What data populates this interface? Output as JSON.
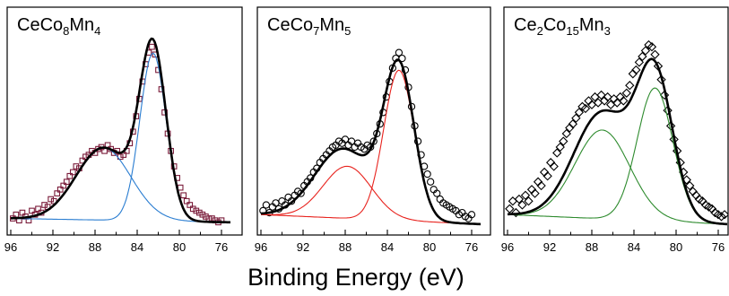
{
  "xlabel": "Binding Energy (eV)",
  "chart_data": [
    {
      "type": "scatter",
      "label_parts": [
        {
          "text": "CeCo",
          "sub": false
        },
        {
          "text": "8",
          "sub": true
        },
        {
          "text": "Mn",
          "sub": false
        },
        {
          "text": "4",
          "sub": true
        }
      ],
      "xlim": [
        96,
        75
      ],
      "xticks": [
        96,
        92,
        88,
        84,
        80,
        76
      ],
      "ylim": [
        0,
        1
      ],
      "colors": {
        "markers": "#7a1c3a",
        "component": "#2a7dd1",
        "fit": "#000000"
      },
      "marker": "square",
      "components": [
        {
          "center": 87.2,
          "amp": 0.375,
          "width": 2.6
        },
        {
          "center": 82.5,
          "amp": 0.87,
          "width": 1.25
        }
      ],
      "fit_peaks": [
        {
          "center": 87.2,
          "amp": 0.375,
          "width": 2.6
        },
        {
          "center": 82.5,
          "amp": 0.87,
          "width": 1.25
        }
      ],
      "baseline_left": 0.03,
      "baseline_right": 0.01,
      "points": [
        [
          95.8,
          0.03
        ],
        [
          95.5,
          0.05
        ],
        [
          95.2,
          0.02
        ],
        [
          94.9,
          0.06
        ],
        [
          94.6,
          0.04
        ],
        [
          94.3,
          0.02
        ],
        [
          94.0,
          0.07
        ],
        [
          93.7,
          0.05
        ],
        [
          93.4,
          0.08
        ],
        [
          93.1,
          0.06
        ],
        [
          92.8,
          0.1
        ],
        [
          92.5,
          0.09
        ],
        [
          92.2,
          0.13
        ],
        [
          91.9,
          0.12
        ],
        [
          91.6,
          0.16
        ],
        [
          91.3,
          0.18
        ],
        [
          91.0,
          0.2
        ],
        [
          90.7,
          0.22
        ],
        [
          90.4,
          0.25
        ],
        [
          90.1,
          0.27
        ],
        [
          89.8,
          0.3
        ],
        [
          89.5,
          0.29
        ],
        [
          89.2,
          0.33
        ],
        [
          88.9,
          0.35
        ],
        [
          88.6,
          0.36
        ],
        [
          88.3,
          0.38
        ],
        [
          88.0,
          0.37
        ],
        [
          87.7,
          0.39
        ],
        [
          87.4,
          0.4
        ],
        [
          87.1,
          0.38
        ],
        [
          86.8,
          0.41
        ],
        [
          86.5,
          0.39
        ],
        [
          86.2,
          0.37
        ],
        [
          85.9,
          0.38
        ],
        [
          85.6,
          0.35
        ],
        [
          85.3,
          0.36
        ],
        [
          85.0,
          0.38
        ],
        [
          84.7,
          0.42
        ],
        [
          84.4,
          0.48
        ],
        [
          84.1,
          0.56
        ],
        [
          83.8,
          0.65
        ],
        [
          83.5,
          0.74
        ],
        [
          83.2,
          0.83
        ],
        [
          82.9,
          0.89
        ],
        [
          82.6,
          0.92
        ],
        [
          82.3,
          0.88
        ],
        [
          82.0,
          0.8
        ],
        [
          81.7,
          0.7
        ],
        [
          81.4,
          0.58
        ],
        [
          81.1,
          0.47
        ],
        [
          80.8,
          0.38
        ],
        [
          80.5,
          0.3
        ],
        [
          80.2,
          0.24
        ],
        [
          79.9,
          0.19
        ],
        [
          79.6,
          0.15
        ],
        [
          79.3,
          0.12
        ],
        [
          79.0,
          0.1
        ],
        [
          78.7,
          0.08
        ],
        [
          78.4,
          0.07
        ],
        [
          78.1,
          0.06
        ],
        [
          77.8,
          0.05
        ],
        [
          77.5,
          0.04
        ],
        [
          77.2,
          0.03
        ],
        [
          76.9,
          0.03
        ],
        [
          76.6,
          0.02
        ],
        [
          76.3,
          0.01
        ],
        [
          76.0,
          0.02
        ]
      ]
    },
    {
      "type": "scatter",
      "label_parts": [
        {
          "text": "CeCo",
          "sub": false
        },
        {
          "text": "7",
          "sub": true
        },
        {
          "text": "Mn",
          "sub": false
        },
        {
          "text": "5",
          "sub": true
        }
      ],
      "xlim": [
        96,
        75
      ],
      "xticks": [
        96,
        92,
        88,
        84,
        80,
        76
      ],
      "ylim": [
        0,
        1
      ],
      "colors": {
        "markers": "#000000",
        "component": "#e8231e",
        "fit": "#000000"
      },
      "marker": "circle",
      "components": [
        {
          "center": 87.8,
          "amp": 0.27,
          "width": 2.3
        },
        {
          "center": 82.9,
          "amp": 0.78,
          "width": 1.45
        }
      ],
      "fit_peaks": [
        {
          "center": 88.2,
          "amp": 0.36,
          "width": 2.7
        },
        {
          "center": 82.9,
          "amp": 0.78,
          "width": 1.45
        }
      ],
      "baseline_left": 0.05,
      "baseline_right": 0.0,
      "points": [
        [
          95.8,
          0.07
        ],
        [
          95.5,
          0.1
        ],
        [
          95.2,
          0.06
        ],
        [
          94.9,
          0.09
        ],
        [
          94.6,
          0.11
        ],
        [
          94.3,
          0.08
        ],
        [
          94.0,
          0.12
        ],
        [
          93.7,
          0.1
        ],
        [
          93.4,
          0.14
        ],
        [
          93.1,
          0.12
        ],
        [
          92.8,
          0.15
        ],
        [
          92.5,
          0.17
        ],
        [
          92.2,
          0.16
        ],
        [
          91.9,
          0.2
        ],
        [
          91.6,
          0.22
        ],
        [
          91.3,
          0.24
        ],
        [
          91.0,
          0.27
        ],
        [
          90.7,
          0.29
        ],
        [
          90.4,
          0.32
        ],
        [
          90.1,
          0.34
        ],
        [
          89.8,
          0.36
        ],
        [
          89.5,
          0.38
        ],
        [
          89.2,
          0.4
        ],
        [
          88.9,
          0.41
        ],
        [
          88.6,
          0.43
        ],
        [
          88.3,
          0.42
        ],
        [
          88.0,
          0.44
        ],
        [
          87.7,
          0.41
        ],
        [
          87.4,
          0.43
        ],
        [
          87.1,
          0.4
        ],
        [
          86.8,
          0.42
        ],
        [
          86.5,
          0.4
        ],
        [
          86.2,
          0.39
        ],
        [
          85.9,
          0.41
        ],
        [
          85.6,
          0.4
        ],
        [
          85.3,
          0.43
        ],
        [
          85.0,
          0.47
        ],
        [
          84.7,
          0.52
        ],
        [
          84.4,
          0.58
        ],
        [
          84.1,
          0.66
        ],
        [
          83.8,
          0.74
        ],
        [
          83.5,
          0.81
        ],
        [
          83.2,
          0.86
        ],
        [
          82.9,
          0.89
        ],
        [
          82.6,
          0.86
        ],
        [
          82.3,
          0.8
        ],
        [
          82.0,
          0.71
        ],
        [
          81.7,
          0.61
        ],
        [
          81.4,
          0.51
        ],
        [
          81.1,
          0.43
        ],
        [
          80.8,
          0.36
        ],
        [
          80.5,
          0.3
        ],
        [
          80.2,
          0.26
        ],
        [
          79.9,
          0.22
        ],
        [
          79.6,
          0.18
        ],
        [
          79.3,
          0.16
        ],
        [
          79.0,
          0.13
        ],
        [
          78.7,
          0.11
        ],
        [
          78.4,
          0.1
        ],
        [
          78.1,
          0.09
        ],
        [
          77.8,
          0.08
        ],
        [
          77.5,
          0.07
        ],
        [
          77.2,
          0.05
        ],
        [
          76.9,
          0.06
        ],
        [
          76.6,
          0.04
        ],
        [
          76.3,
          0.03
        ],
        [
          76.0,
          0.05
        ]
      ]
    },
    {
      "type": "scatter",
      "label_parts": [
        {
          "text": "Ce",
          "sub": false
        },
        {
          "text": "2",
          "sub": true
        },
        {
          "text": "Co",
          "sub": false
        },
        {
          "text": "15",
          "sub": true
        },
        {
          "text": "Mn",
          "sub": false
        },
        {
          "text": "3",
          "sub": true
        }
      ],
      "xlim": [
        96,
        75
      ],
      "xticks": [
        96,
        92,
        88,
        84,
        80,
        76
      ],
      "ylim": [
        0,
        1
      ],
      "colors": {
        "markers": "#000000",
        "component": "#2e8b2e",
        "fit": "#000000"
      },
      "marker": "diamond",
      "components": [
        {
          "center": 87.0,
          "amp": 0.46,
          "width": 2.6
        },
        {
          "center": 82.0,
          "amp": 0.69,
          "width": 1.7
        }
      ],
      "fit_peaks": [
        {
          "center": 87.0,
          "amp": 0.55,
          "width": 2.7
        },
        {
          "center": 82.0,
          "amp": 0.73,
          "width": 1.7
        }
      ],
      "baseline_left": 0.05,
      "baseline_right": 0.0,
      "points": [
        [
          95.8,
          0.08
        ],
        [
          95.5,
          0.12
        ],
        [
          95.2,
          0.06
        ],
        [
          94.9,
          0.13
        ],
        [
          94.6,
          0.1
        ],
        [
          94.3,
          0.15
        ],
        [
          94.0,
          0.12
        ],
        [
          93.7,
          0.18
        ],
        [
          93.4,
          0.16
        ],
        [
          93.1,
          0.22
        ],
        [
          92.8,
          0.2
        ],
        [
          92.5,
          0.27
        ],
        [
          92.2,
          0.25
        ],
        [
          91.9,
          0.32
        ],
        [
          91.6,
          0.3
        ],
        [
          91.3,
          0.37
        ],
        [
          91.0,
          0.4
        ],
        [
          90.7,
          0.43
        ],
        [
          90.4,
          0.47
        ],
        [
          90.1,
          0.5
        ],
        [
          89.8,
          0.52
        ],
        [
          89.5,
          0.55
        ],
        [
          89.2,
          0.58
        ],
        [
          88.9,
          0.61
        ],
        [
          88.6,
          0.6
        ],
        [
          88.3,
          0.64
        ],
        [
          88.0,
          0.62
        ],
        [
          87.7,
          0.66
        ],
        [
          87.4,
          0.63
        ],
        [
          87.1,
          0.67
        ],
        [
          86.8,
          0.64
        ],
        [
          86.5,
          0.66
        ],
        [
          86.2,
          0.62
        ],
        [
          85.9,
          0.65
        ],
        [
          85.6,
          0.63
        ],
        [
          85.3,
          0.66
        ],
        [
          85.0,
          0.64
        ],
        [
          84.7,
          0.68
        ],
        [
          84.4,
          0.72
        ],
        [
          84.1,
          0.78
        ],
        [
          83.8,
          0.8
        ],
        [
          83.5,
          0.84
        ],
        [
          83.2,
          0.87
        ],
        [
          82.9,
          0.9
        ],
        [
          82.6,
          0.93
        ],
        [
          82.3,
          0.92
        ],
        [
          82.0,
          0.88
        ],
        [
          81.7,
          0.82
        ],
        [
          81.4,
          0.75
        ],
        [
          81.1,
          0.67
        ],
        [
          80.8,
          0.59
        ],
        [
          80.5,
          0.51
        ],
        [
          80.2,
          0.44
        ],
        [
          79.9,
          0.38
        ],
        [
          79.6,
          0.32
        ],
        [
          79.3,
          0.27
        ],
        [
          79.0,
          0.23
        ],
        [
          78.7,
          0.2
        ],
        [
          78.4,
          0.17
        ],
        [
          78.1,
          0.15
        ],
        [
          77.8,
          0.13
        ],
        [
          77.5,
          0.12
        ],
        [
          77.2,
          0.1
        ],
        [
          76.9,
          0.09
        ],
        [
          76.6,
          0.08
        ],
        [
          76.3,
          0.06
        ],
        [
          76.0,
          0.05
        ],
        [
          75.7,
          0.04
        ],
        [
          75.4,
          0.05
        ]
      ]
    }
  ]
}
